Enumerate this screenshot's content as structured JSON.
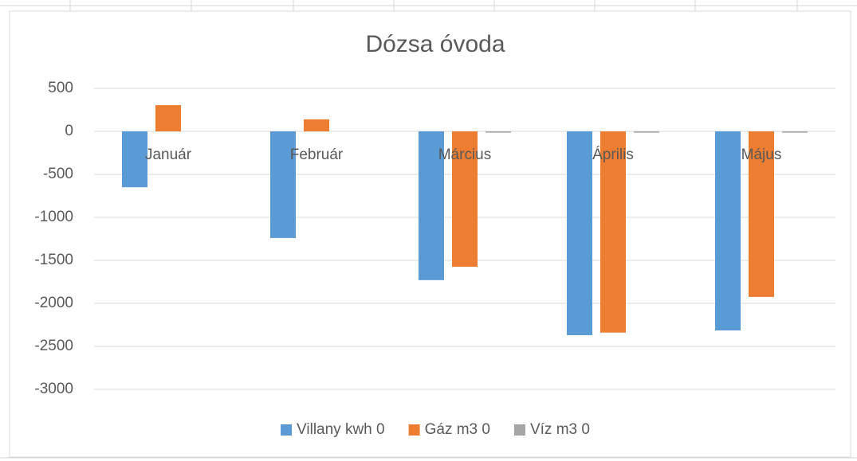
{
  "chart_data": {
    "type": "bar",
    "title": "Dózsa óvoda",
    "categories": [
      "Január",
      "Február",
      "Március",
      "Április",
      "Május"
    ],
    "series": [
      {
        "name": "Villany kwh 0",
        "color": "#5b9bd5",
        "values": [
          -650,
          -1240,
          -1730,
          -2370,
          -2315
        ]
      },
      {
        "name": "Gáz m3 0",
        "color": "#ed7d31",
        "values": [
          305,
          140,
          -1575,
          -2340,
          -1925
        ]
      },
      {
        "name": "Víz m3 0",
        "color": "#a5a5a5",
        "values": [
          0,
          0,
          -15,
          -15,
          -15
        ]
      }
    ],
    "ylim": [
      -3000,
      500
    ],
    "yticks": [
      500,
      0,
      -500,
      -1000,
      -1500,
      -2000,
      -2500,
      -3000
    ],
    "grid": true,
    "legend": "bottom"
  }
}
